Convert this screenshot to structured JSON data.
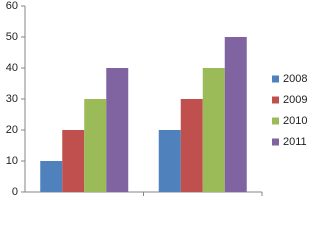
{
  "chart_data": {
    "type": "bar",
    "categories": [
      null,
      null
    ],
    "series": [
      {
        "name": "2008",
        "color": "#4f81bd",
        "values": [
          10,
          20
        ]
      },
      {
        "name": "2009",
        "color": "#c0504d",
        "values": [
          20,
          30
        ]
      },
      {
        "name": "2010",
        "color": "#9bbb59",
        "values": [
          30,
          40
        ]
      },
      {
        "name": "2011",
        "color": "#8064a2",
        "values": [
          40,
          50
        ]
      }
    ],
    "ylim": [
      0,
      60
    ],
    "yticks": [
      0,
      10,
      20,
      30,
      40,
      50,
      60
    ],
    "grid": false,
    "legend": "right"
  }
}
